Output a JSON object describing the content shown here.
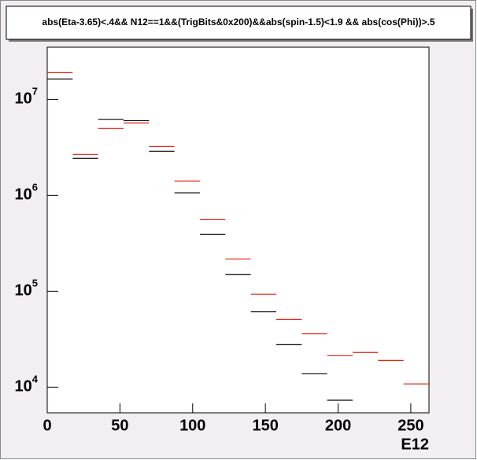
{
  "chart_data": {
    "type": "histogram",
    "title": "abs(Eta-3.65)<.4&& N12==1&&(TrigBits&0x200)&&abs(spin-1.5)<1.9 && abs(cos(Phi))>.5",
    "x_label": "E12",
    "bins": [
      0,
      17.5,
      35,
      52.5,
      70,
      87.5,
      105,
      122.5,
      140,
      157.5,
      175,
      192.5,
      210,
      227.5,
      245,
      262.5
    ],
    "series": [
      {
        "color": "#000000",
        "values": [
          16300000,
          2430000,
          6200000,
          6000000,
          2880000,
          1060000,
          390000,
          149000,
          61000,
          27700,
          13800,
          7300,
          null,
          null,
          null
        ]
      },
      {
        "color": "#e8200c",
        "values": [
          19000000,
          2670000,
          4980000,
          5680000,
          3220000,
          1410000,
          557000,
          217000,
          93000,
          50700,
          36000,
          21300,
          23000,
          19000,
          10800
        ]
      }
    ],
    "xlim": [
      0,
      262.5
    ],
    "ylim": [
      5400,
      35000000
    ],
    "log_y": true,
    "xticks": [
      0,
      50,
      100,
      150,
      200,
      250
    ],
    "yticks": [
      {
        "value": 10000,
        "label": "10",
        "sup": "4"
      },
      {
        "value": 100000,
        "label": "10",
        "sup": "5"
      },
      {
        "value": 1000000,
        "label": "10",
        "sup": "6"
      },
      {
        "value": 10000000,
        "label": "10",
        "sup": "7"
      }
    ]
  }
}
